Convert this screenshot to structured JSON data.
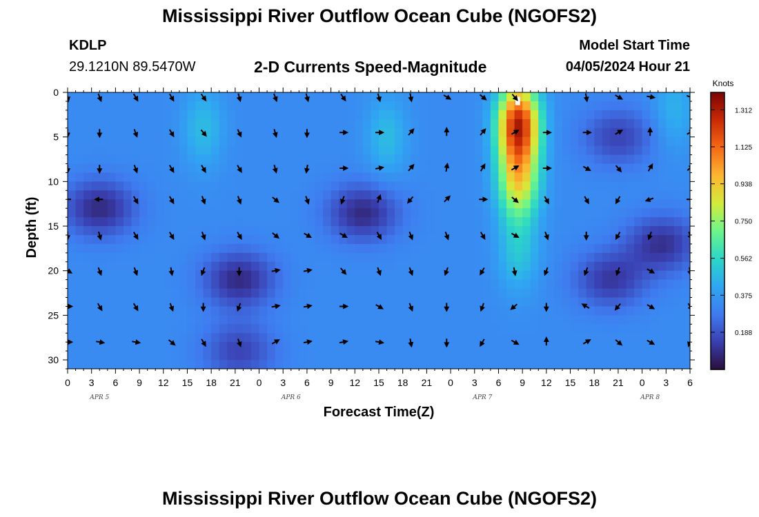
{
  "header": {
    "title": "Mississippi River Outflow Ocean Cube (NGOFS2)",
    "station_id": "KDLP",
    "coordinates": "29.1210N  89.5470W",
    "subtitle": "2-D Currents Speed-Magnitude",
    "model_start_label": "Model Start Time",
    "model_start_value": "04/05/2024 Hour 21"
  },
  "footer": {
    "title": "Mississippi River Outflow Ocean Cube (NGOFS2)"
  },
  "chart_data": {
    "type": "heatmap",
    "xlabel": "Forecast Time(Z)",
    "ylabel": "Depth (ft)",
    "x_tick_labels": [
      "0",
      "3",
      "6",
      "9",
      "12",
      "15",
      "18",
      "21",
      "0",
      "3",
      "6",
      "9",
      "12",
      "15",
      "18",
      "21",
      "0",
      "3",
      "6",
      "9",
      "12",
      "15",
      "18",
      "21",
      "0",
      "3",
      "6"
    ],
    "date_labels": [
      {
        "label": "APR 5",
        "hour": 4
      },
      {
        "label": "APR 6",
        "hour": 28
      },
      {
        "label": "APR 7",
        "hour": 52
      },
      {
        "label": "APR 8",
        "hour": 73
      }
    ],
    "xlim_hours": [
      0,
      78
    ],
    "y_ticks": [
      0,
      5,
      10,
      15,
      20,
      25,
      30
    ],
    "ylim": [
      0,
      31
    ],
    "y_inverted": true,
    "colorbar": {
      "unit": "Knots",
      "ticks": [
        "1.312",
        "1.125",
        "0.938",
        "0.750",
        "0.562",
        "0.375",
        "0.188"
      ],
      "tick_values": [
        1.312,
        1.125,
        0.938,
        0.75,
        0.562,
        0.375,
        0.188
      ],
      "range": [
        0.0,
        1.4
      ],
      "colors": [
        "#2a0f3d",
        "#3a3fb0",
        "#3f7bf0",
        "#2fa7f2",
        "#2bd7c6",
        "#6ef58a",
        "#d3eb3a",
        "#fdb531",
        "#f46a16",
        "#c92a05",
        "#7a0403"
      ]
    },
    "speed_features": {
      "background_speed_kn": 0.33,
      "features": [
        {
          "kind": "max",
          "hour": 56.5,
          "depth_ft": 3.5,
          "speed_kn": 1.25
        },
        {
          "kind": "max",
          "hour": 56.5,
          "depth_ft": 10,
          "speed_kn": 0.85
        },
        {
          "kind": "max",
          "hour": 56.5,
          "depth_ft": 18,
          "speed_kn": 0.5
        },
        {
          "kind": "max",
          "hour": 17,
          "depth_ft": 4,
          "speed_kn": 0.48
        },
        {
          "kind": "max",
          "hour": 40,
          "depth_ft": 5,
          "speed_kn": 0.48
        },
        {
          "kind": "max",
          "hour": 76,
          "depth_ft": 2,
          "speed_kn": 0.45
        },
        {
          "kind": "min",
          "hour": 4,
          "depth_ft": 13,
          "speed_kn": 0.08
        },
        {
          "kind": "min",
          "hour": 37,
          "depth_ft": 13.5,
          "speed_kn": 0.08
        },
        {
          "kind": "min",
          "hour": 21.5,
          "depth_ft": 21,
          "speed_kn": 0.08
        },
        {
          "kind": "min",
          "hour": 21.5,
          "depth_ft": 29,
          "speed_kn": 0.15
        },
        {
          "kind": "min",
          "hour": 74.5,
          "depth_ft": 17,
          "speed_kn": 0.1
        },
        {
          "kind": "min",
          "hour": 68,
          "depth_ft": 21,
          "speed_kn": 0.12
        },
        {
          "kind": "min",
          "hour": 69,
          "depth_ft": 5,
          "speed_kn": 0.15
        }
      ]
    },
    "vector_rows_depth_ft": [
      0.5,
      4.5,
      8.5,
      12,
      16,
      20,
      24,
      28
    ],
    "vector_cols_hours": [
      0,
      4,
      8.5,
      13,
      17,
      21.5,
      26,
      30,
      34.5,
      39,
      43,
      47.5,
      52,
      56,
      60,
      65,
      69,
      73,
      78
    ],
    "vector_directions_deg": [
      [
        170,
        160,
        150,
        150,
        145,
        165,
        160,
        165,
        145,
        165,
        170,
        120,
        130,
        140,
        null,
        170,
        120,
        100,
        110
      ],
      [
        180,
        180,
        160,
        150,
        140,
        155,
        165,
        180,
        90,
        90,
        40,
        0,
        40,
        60,
        90,
        90,
        60,
        0,
        60
      ],
      [
        180,
        180,
        160,
        150,
        150,
        150,
        165,
        190,
        90,
        80,
        40,
        10,
        30,
        60,
        90,
        120,
        140,
        30,
        50
      ],
      [
        270,
        270,
        150,
        150,
        160,
        160,
        130,
        160,
        200,
        20,
        220,
        45,
        90,
        130,
        150,
        150,
        210,
        250,
        90
      ],
      [
        180,
        165,
        150,
        150,
        160,
        150,
        130,
        120,
        120,
        150,
        160,
        160,
        150,
        120,
        160,
        180,
        210,
        200,
        160
      ],
      [
        120,
        160,
        160,
        170,
        200,
        180,
        80,
        80,
        140,
        160,
        160,
        200,
        210,
        170,
        200,
        200,
        200,
        120,
        170
      ],
      [
        90,
        150,
        150,
        160,
        180,
        200,
        80,
        80,
        90,
        120,
        160,
        180,
        200,
        230,
        180,
        300,
        220,
        120,
        150
      ],
      [
        90,
        100,
        100,
        130,
        150,
        160,
        60,
        80,
        80,
        100,
        170,
        180,
        210,
        120,
        0,
        60,
        130,
        120,
        200
      ]
    ]
  }
}
